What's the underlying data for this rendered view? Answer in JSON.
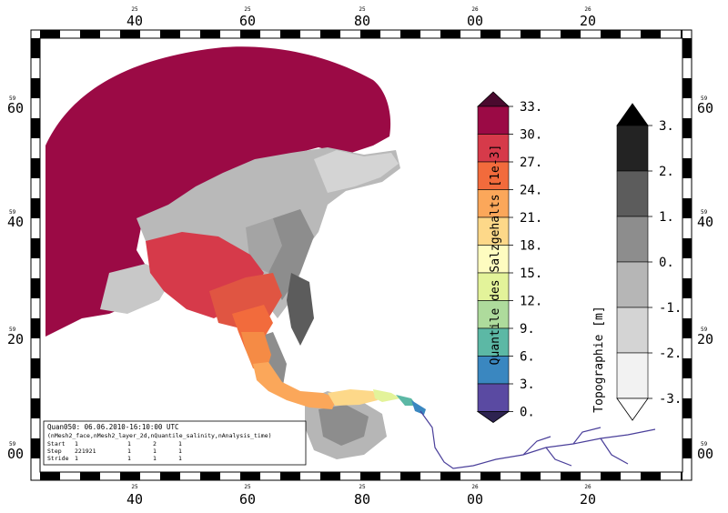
{
  "map": {
    "grid": {
      "x_top_big": [
        "40",
        "60",
        "80",
        "00",
        "20"
      ],
      "x_top_small": [
        "25",
        "25",
        "25",
        "26",
        "26"
      ],
      "x_bottom_big": [
        "40",
        "60",
        "80",
        "00",
        "20"
      ],
      "x_bottom_small": [
        "25",
        "25",
        "25",
        "26",
        "26"
      ],
      "y_big": [
        "60",
        "40",
        "20",
        "00"
      ],
      "y_small": [
        "59",
        "59",
        "59",
        "59"
      ]
    },
    "salinity_legend": {
      "title": "Quantile des Salzgehalts [1e-3]",
      "ticks": [
        "33.",
        "30.",
        "27.",
        "24.",
        "21.",
        "18.",
        "15.",
        "12.",
        "9.",
        "6.",
        "3.",
        "0."
      ],
      "colors": [
        "#4a0a2e",
        "#9b0a45",
        "#d63a4a",
        "#f26b3c",
        "#fba75a",
        "#fdd889",
        "#fefcc0",
        "#e3f39a",
        "#aedb9c",
        "#5cb8a5",
        "#3a87c0",
        "#5a4aa2"
      ]
    },
    "topo_legend": {
      "title": "Topographie [m]",
      "ticks": [
        "3.",
        "2.",
        "1.",
        "0.",
        "-1.",
        "-2.",
        "-3."
      ],
      "colors": [
        "#141414",
        "#232323",
        "#5c5c5c",
        "#8d8d8d",
        "#b6b6b6",
        "#d4d4d4",
        "#f2f2f2",
        "#ffffff"
      ]
    },
    "info_box": {
      "line1": "Quan050: 06.06.2010-16:10:00 UTC",
      "line2": "(nMesh2_face,nMesh2_layer_2d,nQuantile_salinity,nAnalysis_time)",
      "rows": [
        {
          "label": "Start",
          "c1": "1",
          "c2": "1",
          "c3": "2",
          "c4": "1"
        },
        {
          "label": "Step",
          "c1": "221921",
          "c2": "1",
          "c3": "1",
          "c4": "1"
        },
        {
          "label": "Stride",
          "c1": "1",
          "c2": "1",
          "c3": "1",
          "c4": "1"
        }
      ]
    }
  }
}
